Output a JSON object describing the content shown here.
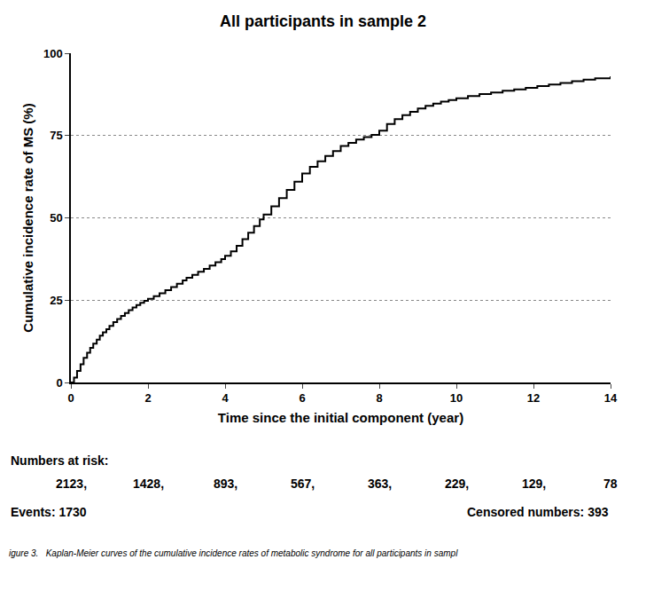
{
  "chart_data": {
    "type": "step",
    "title": "All participants in sample 2",
    "x_label": "Time since the initial component (year)",
    "y_label": "Cumulative incidence rate of MS (%)",
    "x": [
      0.0,
      0.08,
      0.16,
      0.25,
      0.33,
      0.42,
      0.5,
      0.58,
      0.67,
      0.75,
      0.83,
      0.92,
      1.0,
      1.1,
      1.2,
      1.3,
      1.4,
      1.5,
      1.6,
      1.7,
      1.8,
      1.9,
      2.0,
      2.15,
      2.3,
      2.45,
      2.6,
      2.75,
      2.9,
      3.0,
      3.15,
      3.3,
      3.45,
      3.6,
      3.75,
      3.9,
      4.0,
      4.15,
      4.3,
      4.45,
      4.6,
      4.75,
      4.9,
      5.0,
      5.2,
      5.4,
      5.6,
      5.8,
      6.0,
      6.2,
      6.4,
      6.6,
      6.8,
      7.0,
      7.2,
      7.4,
      7.6,
      7.8,
      8.0,
      8.2,
      8.4,
      8.6,
      8.8,
      9.0,
      9.2,
      9.4,
      9.6,
      9.8,
      10.0,
      10.3,
      10.6,
      10.9,
      11.2,
      11.5,
      11.8,
      12.1,
      12.4,
      12.7,
      13.0,
      13.3,
      13.6,
      14.0
    ],
    "values": [
      0.0,
      1.5,
      3.5,
      5.5,
      7.5,
      9.0,
      10.5,
      11.8,
      13.0,
      14.2,
      15.2,
      16.2,
      17.2,
      18.3,
      19.3,
      20.2,
      21.1,
      22.0,
      22.8,
      23.5,
      24.2,
      24.8,
      25.4,
      26.2,
      27.1,
      28.0,
      29.0,
      30.0,
      31.0,
      31.8,
      32.7,
      33.6,
      34.5,
      35.5,
      36.5,
      37.5,
      38.5,
      39.8,
      41.5,
      43.5,
      45.5,
      47.5,
      49.5,
      51.0,
      53.5,
      56.0,
      58.5,
      61.0,
      63.5,
      65.5,
      67.2,
      68.8,
      70.3,
      71.8,
      72.8,
      73.8,
      74.5,
      75.2,
      76.5,
      78.5,
      80.0,
      81.2,
      82.2,
      83.2,
      84.0,
      84.7,
      85.3,
      85.8,
      86.3,
      87.0,
      87.6,
      88.1,
      88.6,
      89.0,
      89.5,
      90.0,
      90.5,
      91.0,
      91.5,
      92.0,
      92.4,
      93.0
    ],
    "color": "#000000",
    "xlim": [
      0,
      14
    ],
    "ylim": [
      0,
      100
    ],
    "xticks": [
      0,
      2,
      4,
      6,
      8,
      10,
      12,
      14
    ],
    "yticks": [
      0,
      25,
      50,
      75,
      100
    ],
    "grid": "y",
    "numbers_at_risk": {
      "label": "Numbers at risk:",
      "x": [
        0,
        2,
        4,
        6,
        8,
        10,
        12,
        14
      ],
      "values": [
        2123,
        1428,
        893,
        567,
        363,
        229,
        129,
        78
      ],
      "value_labels": [
        "2123,",
        "1428,",
        "893,",
        "567,",
        "363,",
        "229,",
        "129,",
        "78"
      ]
    },
    "events_label": "Events: 1730",
    "censored_label": "Censored numbers: 393",
    "caption": "igure 3.   Kaplan-Meier curves of the cumulative incidence rates of metabolic syndrome for all participants in sampl"
  }
}
